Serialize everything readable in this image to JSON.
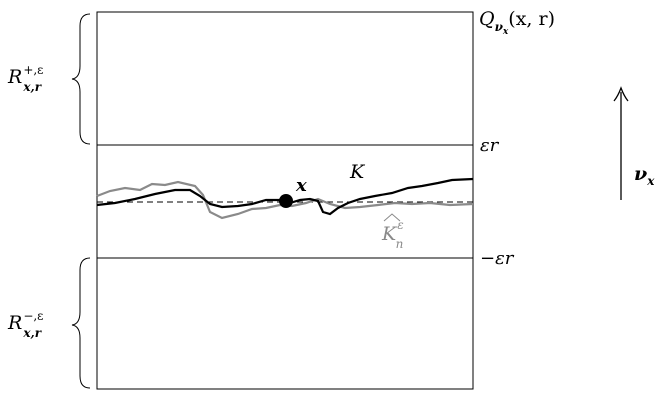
{
  "labels": {
    "cube": "Q",
    "cube_sub": "ν",
    "cube_subsub": "x",
    "cube_args": "(x, r)",
    "eps_r": "εr",
    "minus_eps_r": "−εr",
    "point": "x",
    "curve_k": "K",
    "curve_khat": "K",
    "curve_khat_sup": "ε",
    "curve_khat_sub": "n",
    "region_plus": "R",
    "region_plus_sup": "+,ε",
    "region_plus_sub": "x,r",
    "region_minus": "R",
    "region_minus_sup": "−,ε",
    "region_minus_sub": "x,r",
    "normal": "ν",
    "normal_sub": "x"
  },
  "colors": {
    "line": "#000000",
    "approx_curve": "#8a8a8a"
  }
}
